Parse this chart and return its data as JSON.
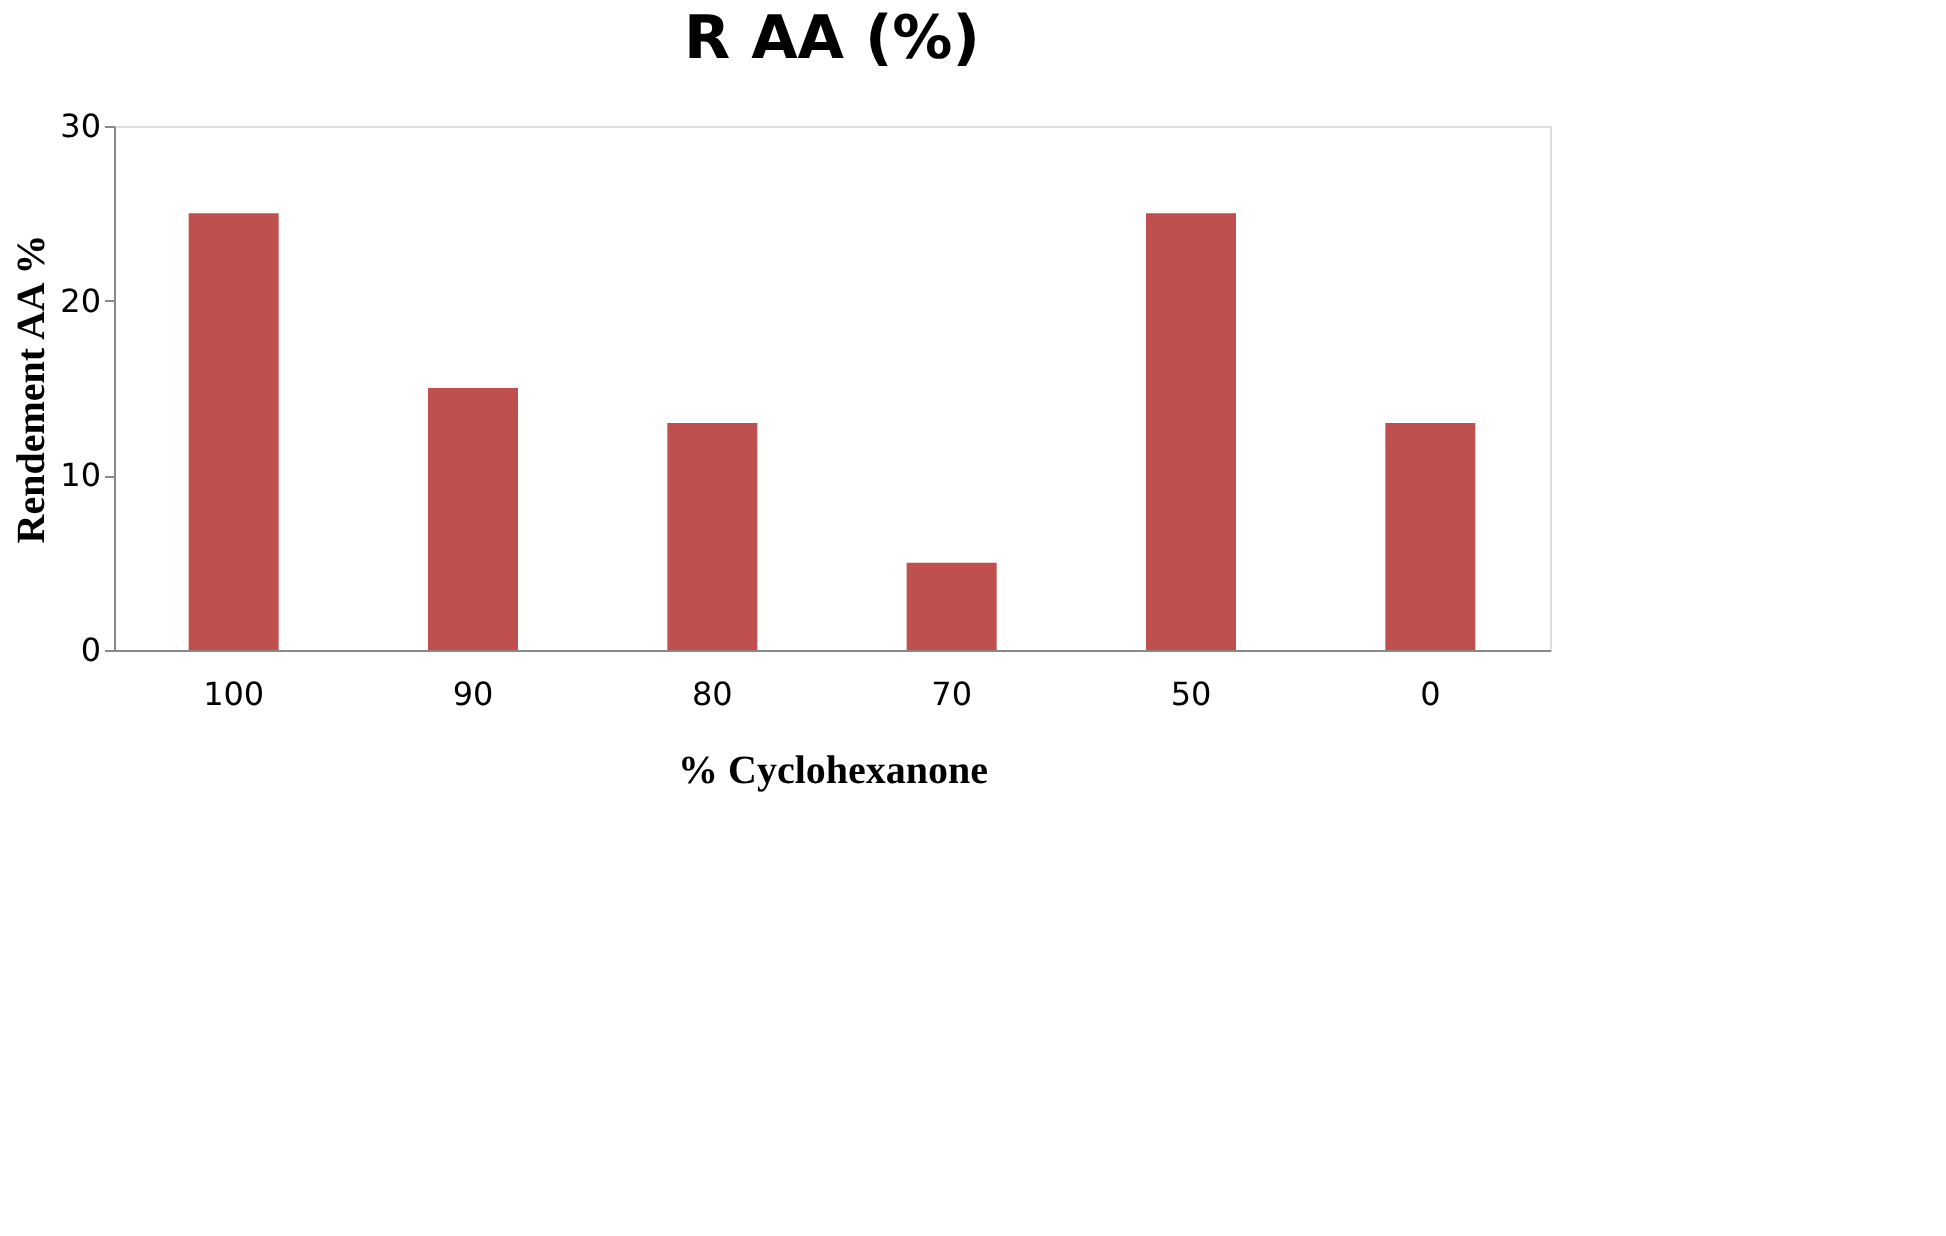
{
  "chart_data": {
    "type": "bar",
    "title": "R AA (%)",
    "xlabel": "% Cyclohexanone",
    "ylabel": "Rendement AA %",
    "categories": [
      "100",
      "90",
      "80",
      "70",
      "50",
      "0"
    ],
    "values": [
      25,
      15,
      13,
      5,
      25,
      13
    ],
    "color": "#c0504d",
    "ylim": [
      0,
      30
    ],
    "yticks": [
      0,
      10,
      20,
      30
    ],
    "grid": false
  }
}
